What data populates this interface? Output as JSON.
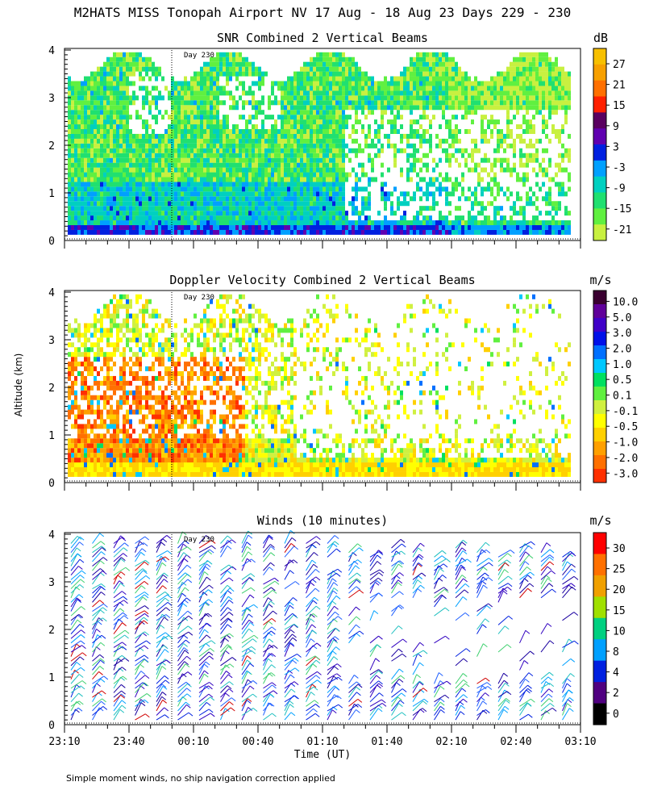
{
  "title": "M2HATS MISS Tonopah Airport NV  17 Aug - 18 Aug 23 Days 229 - 230",
  "ylabel": "Altitude (km)",
  "xlabel": "Time (UT)",
  "footnote": "Simple moment winds, no ship navigation correction applied",
  "x_ticks": [
    "23:10",
    "23:40",
    "00:10",
    "00:40",
    "01:10",
    "01:40",
    "02:10",
    "02:40",
    "03:10"
  ],
  "y_ticks": [
    "0",
    "1",
    "2",
    "3",
    "4"
  ],
  "day_marker": "Day 230",
  "chart_data": [
    {
      "type": "heatmap",
      "title": "SNR Combined 2 Vertical Beams",
      "unit": "dB",
      "xlim": [
        "23:10",
        "03:10"
      ],
      "ylim": [
        0,
        4
      ],
      "colorbar_labels": [
        "27",
        "21",
        "15",
        "9",
        "3",
        "-3",
        "-9",
        "-15",
        "-21"
      ],
      "colorbar_colors": [
        "#f7c000",
        "#f7a000",
        "#ff7000",
        "#ff2000",
        "#5a0060",
        "#6000b0",
        "#0020e0",
        "#00a0ff",
        "#00d0c0",
        "#20e070",
        "#60f040",
        "#c8f040"
      ],
      "depicted_field": "snr"
    },
    {
      "type": "heatmap",
      "title": "Doppler Velocity Combined 2 Vertical Beams",
      "unit": "m/s",
      "xlim": [
        "23:10",
        "03:10"
      ],
      "ylim": [
        0,
        4
      ],
      "colorbar_labels": [
        "10.0",
        "5.0",
        "3.0",
        "2.0",
        "1.0",
        "0.5",
        "0.1",
        "-0.1",
        "-0.5",
        "-1.0",
        "-2.0",
        "-3.0"
      ],
      "colorbar_colors": [
        "#3a0030",
        "#60009a",
        "#4000c8",
        "#0010e8",
        "#0070ff",
        "#00c8ff",
        "#00e060",
        "#60f040",
        "#d0f040",
        "#ffff00",
        "#ffd000",
        "#ffa000",
        "#ff7000",
        "#ff3000"
      ],
      "depicted_field": "velocity"
    },
    {
      "type": "scatter",
      "title": "Winds (10 minutes)",
      "unit": "m/s",
      "xlim": [
        "23:10",
        "03:10"
      ],
      "ylim": [
        0,
        4
      ],
      "colorbar_labels": [
        "30",
        "25",
        "20",
        "15",
        "10",
        "8",
        "4",
        "2",
        "0"
      ],
      "colorbar_colors": [
        "#ff0000",
        "#ff7000",
        "#f0a000",
        "#a0e000",
        "#00d080",
        "#00a0ff",
        "#0020e0",
        "#500080",
        "#000000"
      ],
      "depicted_field": "wind_barbs"
    }
  ]
}
